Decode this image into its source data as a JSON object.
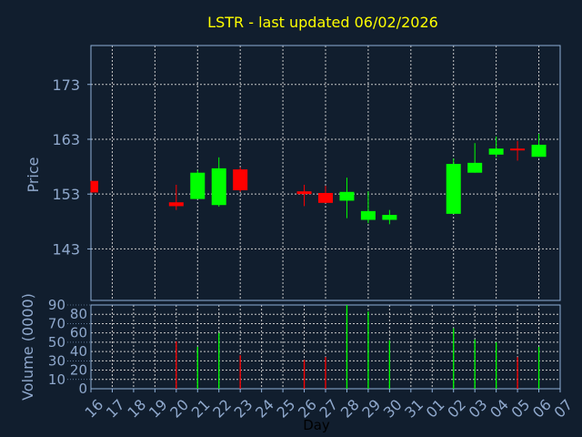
{
  "chart_data": [
    {
      "type": "candlestick",
      "title": "LSTR - last updated 06/02/2026",
      "ylabel": "Price",
      "ylim": [
        133.6,
        180.1
      ],
      "yticks": [
        143,
        153,
        163,
        173
      ],
      "grid": true,
      "categories": [
        "16",
        "17",
        "18",
        "19",
        "20",
        "21",
        "22",
        "23",
        "24",
        "25",
        "26",
        "27",
        "28",
        "29",
        "30",
        "31",
        "01",
        "02",
        "03",
        "04",
        "05",
        "06",
        "07"
      ],
      "candles": [
        {
          "day": "16",
          "open": 155.4,
          "high": 155.4,
          "low": 153.3,
          "close": 153.3
        },
        {
          "day": "20",
          "open": 151.5,
          "high": 154.7,
          "low": 150.1,
          "close": 150.8
        },
        {
          "day": "21",
          "open": 152.1,
          "high": 157.4,
          "low": 152.1,
          "close": 156.9
        },
        {
          "day": "22",
          "open": 151.0,
          "high": 159.7,
          "low": 150.7,
          "close": 157.7
        },
        {
          "day": "23",
          "open": 157.5,
          "high": 157.9,
          "low": 153.4,
          "close": 153.7
        },
        {
          "day": "26",
          "open": 153.5,
          "high": 154.7,
          "low": 150.8,
          "close": 153.0
        },
        {
          "day": "27",
          "open": 153.2,
          "high": 154.5,
          "low": 151.4,
          "close": 151.4
        },
        {
          "day": "28",
          "open": 151.8,
          "high": 156.0,
          "low": 148.6,
          "close": 153.4
        },
        {
          "day": "29",
          "open": 148.3,
          "high": 153.5,
          "low": 147.7,
          "close": 149.9
        },
        {
          "day": "30",
          "open": 148.3,
          "high": 150.1,
          "low": 147.5,
          "close": 149.2
        },
        {
          "day": "02",
          "open": 149.4,
          "high": 159.5,
          "low": 149.4,
          "close": 158.5
        },
        {
          "day": "03",
          "open": 156.9,
          "high": 162.3,
          "low": 156.9,
          "close": 158.7
        },
        {
          "day": "04",
          "open": 160.2,
          "high": 163.5,
          "low": 159.7,
          "close": 161.3
        },
        {
          "day": "05",
          "open": 161.3,
          "high": 162.7,
          "low": 159.1,
          "close": 161.1
        },
        {
          "day": "06",
          "open": 159.8,
          "high": 164.0,
          "low": 159.8,
          "close": 162.0
        }
      ],
      "colors": {
        "up": "#00ff00",
        "down": "#ff0000"
      }
    },
    {
      "type": "bar",
      "ylabel": "Volume (0000)",
      "xlabel": "Day",
      "ylim": [
        0,
        90
      ],
      "yticks": [
        0,
        10,
        20,
        30,
        40,
        50,
        60,
        70,
        80,
        90
      ],
      "grid": true,
      "bars": [
        {
          "day": "20",
          "value": 51,
          "dir": "down"
        },
        {
          "day": "21",
          "value": 45,
          "dir": "up"
        },
        {
          "day": "22",
          "value": 60,
          "dir": "up"
        },
        {
          "day": "23",
          "value": 36,
          "dir": "down"
        },
        {
          "day": "26",
          "value": 31,
          "dir": "down"
        },
        {
          "day": "27",
          "value": 34,
          "dir": "down"
        },
        {
          "day": "28",
          "value": 90,
          "dir": "up"
        },
        {
          "day": "29",
          "value": 83,
          "dir": "up"
        },
        {
          "day": "30",
          "value": 52,
          "dir": "up"
        },
        {
          "day": "02",
          "value": 65,
          "dir": "up"
        },
        {
          "day": "03",
          "value": 53,
          "dir": "up"
        },
        {
          "day": "04",
          "value": 50,
          "dir": "up"
        },
        {
          "day": "05",
          "value": 34,
          "dir": "down"
        },
        {
          "day": "06",
          "value": 45,
          "dir": "up"
        }
      ]
    }
  ]
}
